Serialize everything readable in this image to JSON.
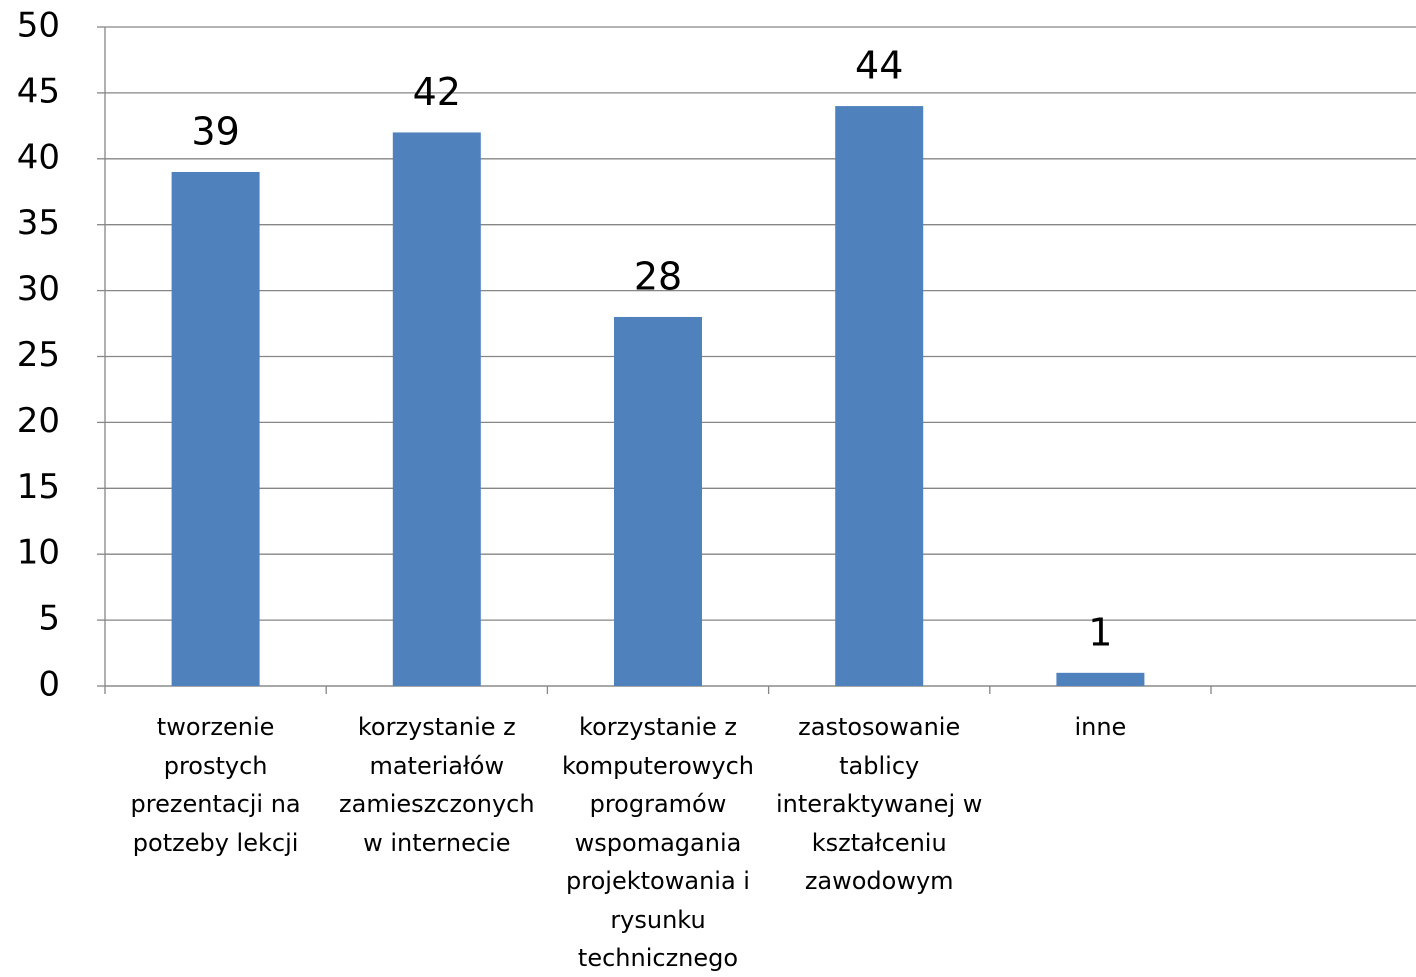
{
  "chart_data": {
    "type": "bar",
    "categories": [
      "tworzenie prostych prezentacji na potzeby lekcji",
      "korzystanie z materiałów zamieszczonych w internecie",
      "korzystanie z komputerowych programów wspomagania projektowania i rysunku technicznego",
      "zastosowanie tablicy interaktywanej w kształceniu zawodowym",
      "inne",
      null
    ],
    "values": [
      39,
      42,
      28,
      44,
      1,
      null
    ],
    "color": "#4f81bd",
    "ylim": [
      0,
      50
    ],
    "yticks": [
      0,
      5,
      10,
      15,
      20,
      25,
      30,
      35,
      40,
      45,
      50
    ],
    "grid": true
  }
}
